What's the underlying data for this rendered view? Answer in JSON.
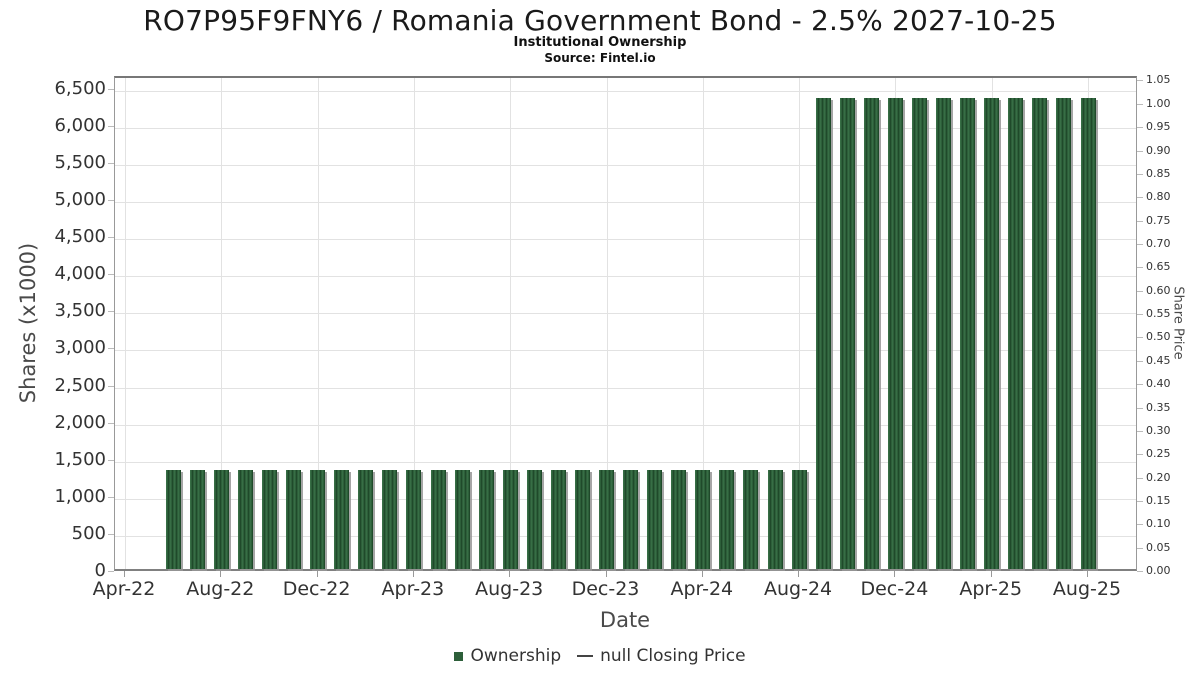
{
  "title": "RO7P95F9FNY6 / Romania Government Bond - 2.5% 2027-10-25",
  "subtitle": "Institutional Ownership",
  "source": "Source: Fintel.io",
  "axes": {
    "x": {
      "label": "Date",
      "ticks": [
        "Apr-22",
        "Aug-22",
        "Dec-22",
        "Apr-23",
        "Aug-23",
        "Dec-23",
        "Apr-24",
        "Aug-24",
        "Dec-24",
        "Apr-25",
        "Aug-25"
      ]
    },
    "left": {
      "label": "Shares (x1000)",
      "ticks": [
        0,
        500,
        1000,
        1500,
        2000,
        2500,
        3000,
        3500,
        4000,
        4500,
        5000,
        5500,
        6000,
        6500
      ]
    },
    "right": {
      "label": "Share Price",
      "ticks": [
        0,
        0.05,
        0.1,
        0.15,
        0.2,
        0.25,
        0.3,
        0.35,
        0.4,
        0.45,
        0.5,
        0.55,
        0.6,
        0.65,
        0.7,
        0.75,
        0.8,
        0.85,
        0.9,
        0.95,
        1.0,
        1.05
      ]
    }
  },
  "legend": {
    "ownership_label": "Ownership",
    "price_label": "null Closing Price"
  },
  "colors": {
    "bar": "#2d5f3a",
    "bar_stripe_dark": "#1f4a2a",
    "bar_stripe_light": "#376e45",
    "bar_shadow": "#969696",
    "grid": "#e2e2e2",
    "tick_text": "#333333",
    "axis_title_text": "#4a4a4a",
    "legend_dash": "#444444"
  },
  "chart_data": {
    "type": "bar",
    "title": "RO7P95F9FNY6 / Romania Government Bond - 2.5% 2027-10-25",
    "xlabel": "Date",
    "ylabel": "Shares (x1000)",
    "ylabel_right": "Share Price",
    "ylim_left": [
      0,
      6500
    ],
    "ylim_right": [
      0,
      1.05
    ],
    "grid": true,
    "legend_position": "bottom",
    "x": [
      "Jun-22",
      "Jul-22",
      "Aug-22",
      "Sep-22",
      "Oct-22",
      "Nov-22",
      "Dec-22",
      "Jan-23",
      "Feb-23",
      "Mar-23",
      "Apr-23",
      "May-23",
      "Jun-23",
      "Jul-23",
      "Aug-23",
      "Sep-23",
      "Oct-23",
      "Nov-23",
      "Dec-23",
      "Jan-24",
      "Feb-24",
      "Mar-24",
      "Apr-24",
      "May-24",
      "Jun-24",
      "Jul-24",
      "Aug-24",
      "Sep-24",
      "Oct-24",
      "Nov-24",
      "Dec-24",
      "Jan-25",
      "Feb-25",
      "Mar-25",
      "Apr-25",
      "May-25",
      "Jun-25",
      "Jul-25",
      "Aug-25"
    ],
    "series": [
      {
        "name": "Ownership",
        "units": "shares_x1000",
        "values": [
          1340,
          1340,
          1340,
          1340,
          1340,
          1340,
          1340,
          1340,
          1340,
          1340,
          1340,
          1340,
          1340,
          1340,
          1340,
          1340,
          1340,
          1340,
          1340,
          1340,
          1340,
          1340,
          1340,
          1340,
          1340,
          1340,
          1340,
          6350,
          6350,
          6350,
          6350,
          6350,
          6350,
          6350,
          6350,
          6350,
          6350,
          6350,
          6350
        ]
      },
      {
        "name": "null Closing Price",
        "units": "share_price",
        "values": []
      }
    ]
  }
}
